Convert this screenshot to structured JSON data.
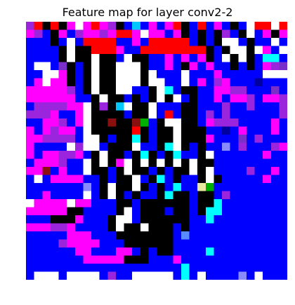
{
  "chart_data": {
    "type": "heatmap",
    "title": "Feature map for layer conv2-2",
    "xlabel": "",
    "ylabel": "",
    "grid": false,
    "axes_visible": false,
    "rows": 32,
    "cols": 32,
    "palette": {
      "B": "#0000ff",
      "W": "#ffffff",
      "K": "#000000",
      "M": "#ff00ff",
      "P": "#9b24dd",
      "V": "#7a30c8",
      "R": "#ff0000",
      "C": "#00ffff",
      "L": "#8a8aff",
      "N": "#0000a0",
      "G": "#00b000",
      "D": "#8a1010",
      "S": "#00c8ff",
      "O": "#c040a0",
      "Y": "#e8e8a0",
      "H": "#5a8aff"
    },
    "cells": [
      "PRKRKMWMRMPKBSBMBMRKBRBMBKBWRRWR",
      "MPBKMBPMMPMRRMWMMBMKBKBKPBKWBMKM",
      "BBBKBWBRRRRBBMBRRRRRBKBKWWBKBBWB",
      "BBBBKWKKRRRMBBRRRRRRRRKBKWWKWMBW",
      "BBBBKWKKWKKBWKKBBMBMBMKBWKWKBCCB",
      "BWWBVKBKWKKWWWKBBMBKMBMBBKBKBMPV",
      "BBWWMKBKWKKWWWKWBBBWBBBMBBBBBWWW",
      "BMWMMKBKWKKWWWKWWBBWBMBPMBBBNBBB",
      "MMMMMPBKWKKWWBBKWCBKKBBMMPPBBBVB",
      "MMMMMMBBKWKKBKBKWKWBKBBMBMMPBMMP",
      "BPPPPMMWKPKSWKKWBBBKKBBBPBBPBBBP",
      "PPPMBBMWKKKKBKKWBRBKKBPBPBBBBBBP",
      "BBMMPBMWKKDKKDGBKWWKKBMPPPBBBBMB",
      "MBMPMMBWKKKKKRKBKKWKKKBBNBMBBBMB",
      "MMPPPPBWWKBKKCKBKKWKKKMBBBVBPBBB",
      "MBBBBWPWWBKKKWBBKCWKBKBBLBPBBBPM",
      "MBMMPPMBKWKKBKCKBKCBBKWBBBBBBMBB",
      "BMMMPBBWKWKMWKWKWKWKWKKBBBBBBBBB",
      "MMDBMBBWKKBKWKKBKBKKWKWBBBBPBBMB",
      "BWBMMMMBBKBKKWBKCBKBBKWKBBBBBMBB",
      "BBBBBBBLBKWKKWKBKBCBBYGBBBBBBBBB",
      "BBMBBBBWBKWKBKBBKCKKBKKBPBBBBBBB",
      "WMMMMWMMBBBKKBKKKKKKBKKCBBBBBBBB",
      "MMMMMKKBBBBKWBKKKBKKBKCCBBBBBBBB",
      "BBBKKKMBBBKWWBKKKKKKBBCBBBBBBBBB",
      "MMMPPMBBBBKWKKWKKKBKBBBBBBBBBBBB",
      "BBBBBMMMBBBKKKKKKKBHBBBBBBBBBBBB",
      "BBBBPMMMMBBBKKKKKKBBBBBBBBBBBBBB",
      "BBBBBBMMBBBMMBKBKKBBBBCBBBBBBBBB",
      "BBBBBBBMMMMMKKKBBBMBBBBBBBBBBBBB",
      "BBBBBBBBBBBBBBBBBBBCBBBBBBBBBBBB",
      "BWWWBWWWWBPBBWWWWWBCBWBBBBLBWBBB"
    ]
  }
}
